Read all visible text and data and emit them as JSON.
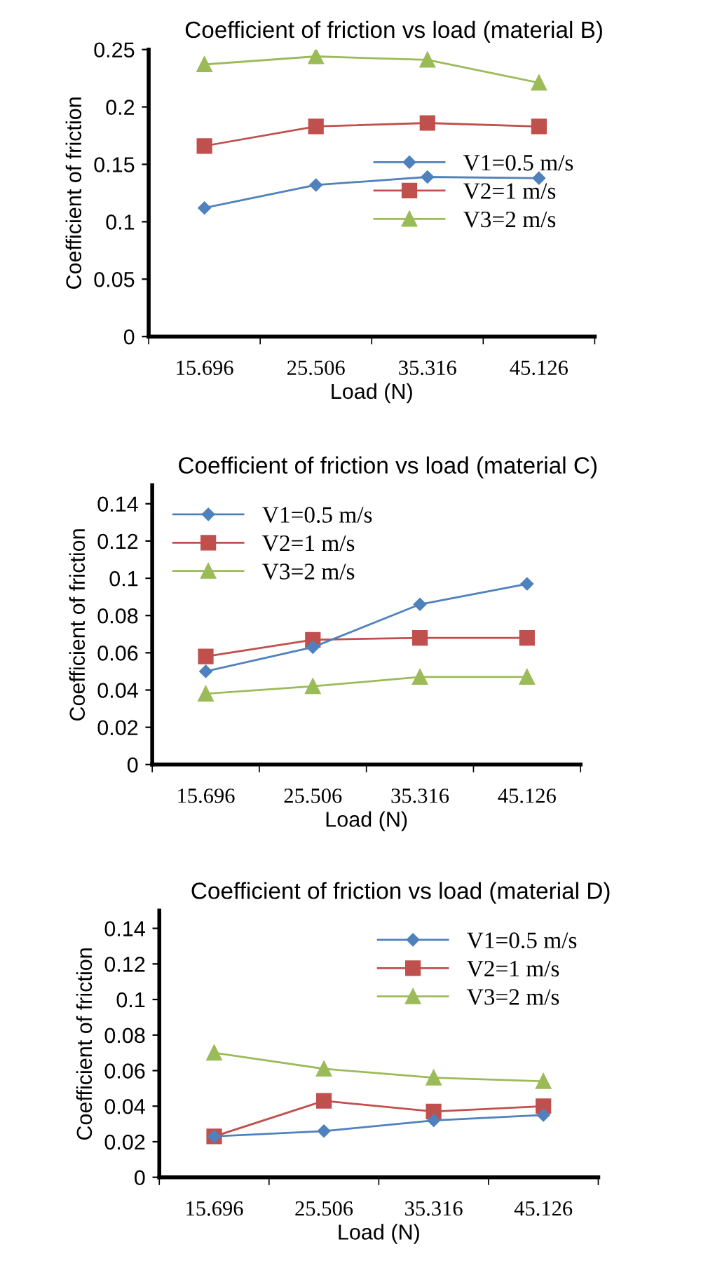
{
  "chart_data": [
    {
      "type": "line",
      "title": "Coefficient of friction vs load (material B)",
      "xlabel": "Load (N)",
      "ylabel": "Coefficient of friction",
      "categories": [
        "15.696",
        "25.506",
        "35.316",
        "45.126"
      ],
      "ylim": [
        0,
        0.25
      ],
      "yticks": [
        0,
        0.05,
        0.1,
        0.15,
        0.2,
        0.25
      ],
      "grid": false,
      "legend": "right",
      "series": [
        {
          "name": "V1=0.5 m/s",
          "color": "#4f81bd",
          "marker": "diamond",
          "values": [
            0.112,
            0.132,
            0.139,
            0.138
          ]
        },
        {
          "name": "V2=1 m/s",
          "color": "#c0504d",
          "marker": "square",
          "values": [
            0.166,
            0.183,
            0.186,
            0.183
          ]
        },
        {
          "name": "V3=2 m/s",
          "color": "#9bbb59",
          "marker": "triangle",
          "values": [
            0.237,
            0.244,
            0.241,
            0.221
          ]
        }
      ]
    },
    {
      "type": "line",
      "title": "Coefficient of friction vs load (material C)",
      "xlabel": "Load (N)",
      "ylabel": "Coefficient of friction",
      "categories": [
        "15.696",
        "25.506",
        "35.316",
        "45.126"
      ],
      "ylim": [
        0,
        0.15
      ],
      "yticks": [
        0,
        0.02,
        0.04,
        0.06,
        0.08,
        0.1,
        0.12,
        0.14
      ],
      "grid": false,
      "legend": "top left",
      "series": [
        {
          "name": "V1=0.5 m/s",
          "color": "#4f81bd",
          "marker": "diamond",
          "values": [
            0.05,
            0.063,
            0.086,
            0.097
          ]
        },
        {
          "name": "V2=1 m/s",
          "color": "#c0504d",
          "marker": "square",
          "values": [
            0.058,
            0.067,
            0.068,
            0.068
          ]
        },
        {
          "name": "V3=2 m/s",
          "color": "#9bbb59",
          "marker": "triangle",
          "values": [
            0.038,
            0.042,
            0.047,
            0.047
          ]
        }
      ]
    },
    {
      "type": "line",
      "title": "Coefficient of friction vs load (material D)",
      "xlabel": "Load (N)",
      "ylabel": "Coefficient of friction",
      "categories": [
        "15.696",
        "25.506",
        "35.316",
        "45.126"
      ],
      "ylim": [
        0,
        0.15
      ],
      "yticks": [
        0,
        0.02,
        0.04,
        0.06,
        0.08,
        0.1,
        0.12,
        0.14
      ],
      "grid": false,
      "legend": "top right",
      "series": [
        {
          "name": "V1=0.5 m/s",
          "color": "#4f81bd",
          "marker": "diamond",
          "values": [
            0.023,
            0.026,
            0.032,
            0.035
          ]
        },
        {
          "name": "V2=1 m/s",
          "color": "#c0504d",
          "marker": "square",
          "values": [
            0.023,
            0.043,
            0.037,
            0.04
          ]
        },
        {
          "name": "V3=2 m/s",
          "color": "#9bbb59",
          "marker": "triangle",
          "values": [
            0.07,
            0.061,
            0.056,
            0.054
          ]
        }
      ]
    }
  ]
}
